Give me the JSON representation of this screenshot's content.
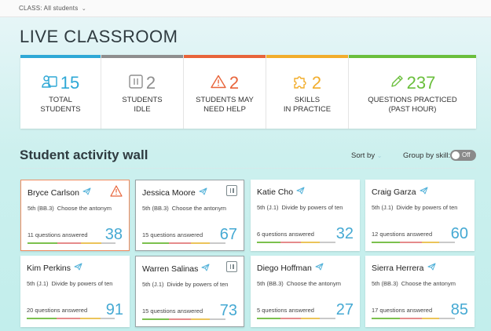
{
  "topbar": {
    "class_label": "CLASS:",
    "class_value": "All students"
  },
  "title": "LIVE CLASSROOM",
  "stats": [
    {
      "value": "15",
      "label": "TOTAL\nSTUDENTS",
      "color": "#2ea8d6",
      "icon": "students-icon"
    },
    {
      "value": "2",
      "label": "STUDENTS\nIDLE",
      "color": "#8e8e8e",
      "icon": "pause-icon"
    },
    {
      "value": "2",
      "label": "STUDENTS MAY\nNEED HELP",
      "color": "#e8643a",
      "icon": "warning-icon"
    },
    {
      "value": "2",
      "label": "SKILLS\nIN PRACTICE",
      "color": "#f2ad2c",
      "icon": "puzzle-icon"
    },
    {
      "value": "237",
      "label": "QUESTIONS PRACTICED\n(PAST HOUR)",
      "color": "#6abf3c",
      "icon": "pencil-icon"
    }
  ],
  "section": {
    "title": "Student activity wall",
    "sort_label": "Sort by",
    "group_label": "Group by skill:",
    "toggle_label": "Off"
  },
  "students": [
    {
      "name": "Bryce Carlson",
      "code": "5th (BB.3)",
      "skill": "Choose the antonym",
      "answered": "11 questions answered",
      "score": "38",
      "status": "warn"
    },
    {
      "name": "Jessica Moore",
      "code": "5th (BB.3)",
      "skill": "Choose the antonym",
      "answered": "15 questions answered",
      "score": "67",
      "status": "idle"
    },
    {
      "name": "Katie Cho",
      "code": "5th (J.1)",
      "skill": "Divide by powers of ten",
      "answered": "6 questions answered",
      "score": "32",
      "status": ""
    },
    {
      "name": "Craig Garza",
      "code": "5th (J.1)",
      "skill": "Divide by powers of ten",
      "answered": "12 questions answered",
      "score": "60",
      "status": ""
    },
    {
      "name": "Kim Perkins",
      "code": "5th (J.1)",
      "skill": "Divide by powers of ten",
      "answered": "20 questions answered",
      "score": "91",
      "status": ""
    },
    {
      "name": "Warren Salinas",
      "code": "5th (J.1)",
      "skill": "Divide by powers of ten",
      "answered": "15 questions answered",
      "score": "73",
      "status": "idle"
    },
    {
      "name": "Diego Hoffman",
      "code": "5th (BB.3)",
      "skill": "Choose the antonym",
      "answered": "5 questions answered",
      "score": "27",
      "status": ""
    },
    {
      "name": "Sierra Herrera",
      "code": "5th (BB.3)",
      "skill": "Choose the antonym",
      "answered": "17 questions answered",
      "score": "85",
      "status": ""
    }
  ]
}
